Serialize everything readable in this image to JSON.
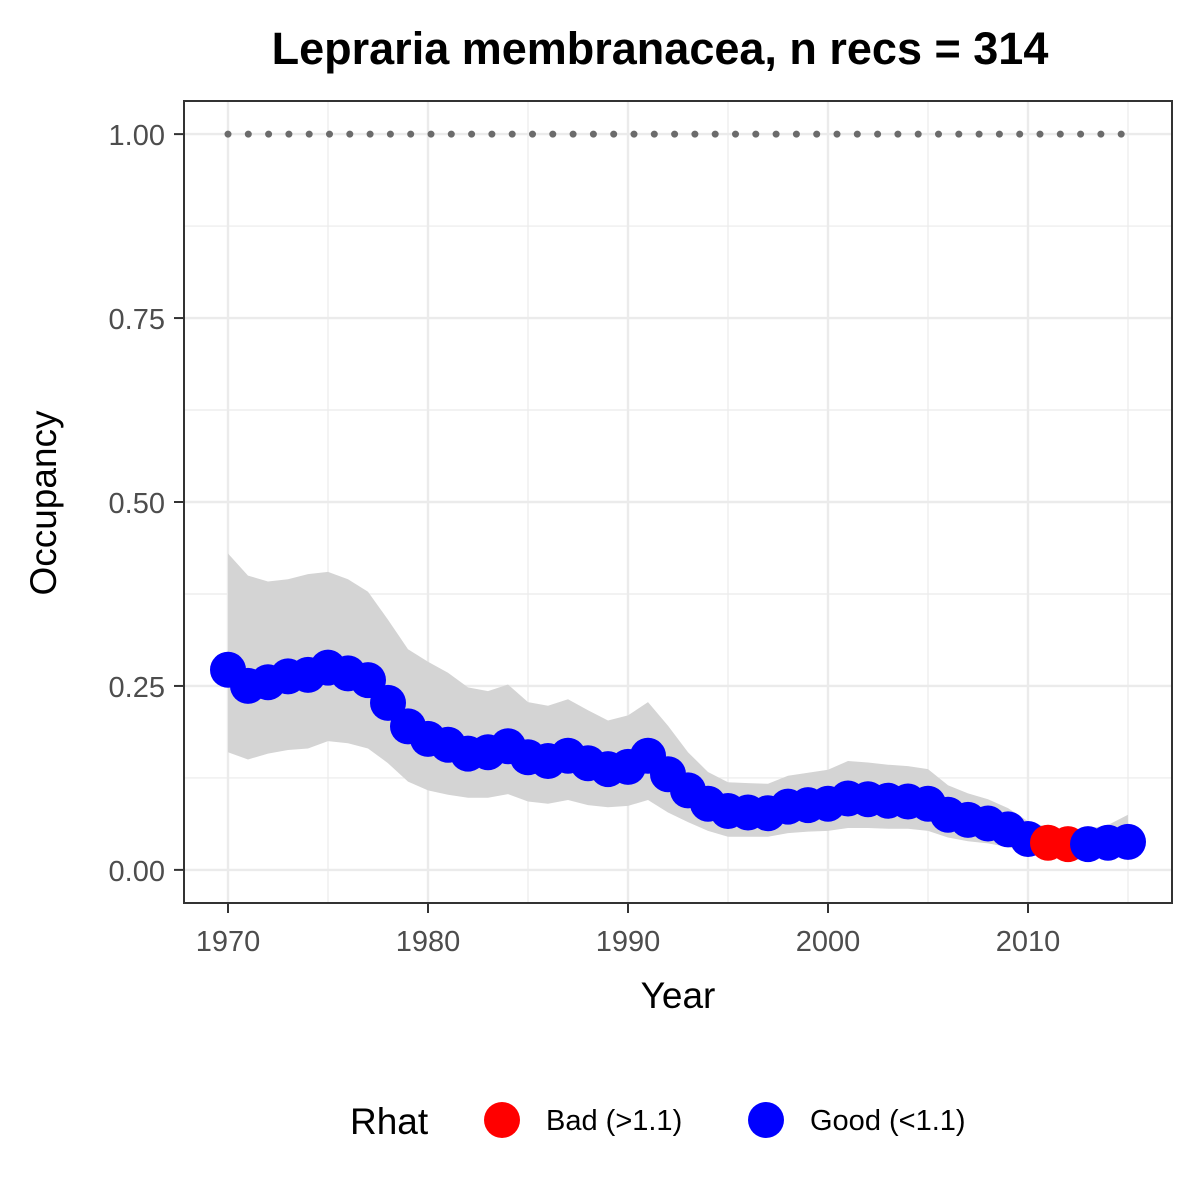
{
  "chart_data": {
    "type": "line",
    "title": "Lepraria membranacea, n recs = 314",
    "xlabel": "Year",
    "ylabel": "Occupancy",
    "xlim": [
      1967.8,
      2017.2
    ],
    "ylim": [
      -0.045,
      1.045
    ],
    "x_ticks": [
      1970,
      1980,
      1990,
      2000,
      2010
    ],
    "y_ticks": [
      0.0,
      0.25,
      0.5,
      0.75,
      1.0
    ],
    "y_tick_labels": [
      "0.00",
      "0.25",
      "0.50",
      "0.75",
      "1.00"
    ],
    "grid": true,
    "legend": {
      "position": "bottom",
      "title": "Rhat",
      "entries": [
        {
          "label": "Bad (>1.1)",
          "color": "#ff0000"
        },
        {
          "label": "Good (<1.1)",
          "color": "#0000ff"
        }
      ]
    },
    "colors": {
      "bad": "#ff0000",
      "good": "#0000ff",
      "ribbon": "#d4d4d4",
      "reference": "#6b6b6b",
      "grid": "#ebebeb",
      "panel_border": "#333333"
    },
    "reference_line": {
      "y": 1.0,
      "style": "dotted"
    },
    "x": [
      1970,
      1971,
      1972,
      1973,
      1974,
      1975,
      1976,
      1977,
      1978,
      1979,
      1980,
      1981,
      1982,
      1983,
      1984,
      1985,
      1986,
      1987,
      1988,
      1989,
      1990,
      1991,
      1992,
      1993,
      1994,
      1995,
      1996,
      1997,
      1998,
      1999,
      2000,
      2001,
      2002,
      2003,
      2004,
      2005,
      2006,
      2007,
      2008,
      2009,
      2010,
      2011,
      2012,
      2013,
      2014,
      2015
    ],
    "y": [
      0.272,
      0.25,
      0.255,
      0.263,
      0.265,
      0.275,
      0.267,
      0.258,
      0.227,
      0.195,
      0.178,
      0.17,
      0.158,
      0.16,
      0.168,
      0.153,
      0.148,
      0.155,
      0.145,
      0.137,
      0.14,
      0.155,
      0.13,
      0.108,
      0.09,
      0.08,
      0.078,
      0.077,
      0.086,
      0.088,
      0.09,
      0.097,
      0.096,
      0.094,
      0.093,
      0.09,
      0.075,
      0.068,
      0.063,
      0.055,
      0.042,
      0.037,
      0.035,
      0.035,
      0.037,
      0.038
    ],
    "lower": [
      0.16,
      0.15,
      0.158,
      0.163,
      0.165,
      0.175,
      0.172,
      0.165,
      0.145,
      0.12,
      0.108,
      0.102,
      0.098,
      0.098,
      0.103,
      0.093,
      0.09,
      0.095,
      0.088,
      0.085,
      0.087,
      0.095,
      0.078,
      0.065,
      0.053,
      0.045,
      0.045,
      0.045,
      0.05,
      0.052,
      0.053,
      0.057,
      0.057,
      0.056,
      0.056,
      0.053,
      0.044,
      0.039,
      0.036,
      0.031,
      0.024,
      0.021,
      0.02,
      0.02,
      0.021,
      0.022
    ],
    "upper": [
      0.43,
      0.4,
      0.392,
      0.395,
      0.402,
      0.405,
      0.395,
      0.378,
      0.34,
      0.3,
      0.283,
      0.268,
      0.248,
      0.243,
      0.252,
      0.228,
      0.223,
      0.232,
      0.217,
      0.203,
      0.21,
      0.228,
      0.196,
      0.16,
      0.133,
      0.119,
      0.118,
      0.117,
      0.128,
      0.132,
      0.136,
      0.148,
      0.146,
      0.143,
      0.141,
      0.137,
      0.115,
      0.104,
      0.096,
      0.084,
      0.066,
      0.058,
      0.055,
      0.056,
      0.061,
      0.075
    ],
    "rhat": [
      "Good",
      "Good",
      "Good",
      "Good",
      "Good",
      "Good",
      "Good",
      "Good",
      "Good",
      "Good",
      "Good",
      "Good",
      "Good",
      "Good",
      "Good",
      "Good",
      "Good",
      "Good",
      "Good",
      "Good",
      "Good",
      "Good",
      "Good",
      "Good",
      "Good",
      "Good",
      "Good",
      "Good",
      "Good",
      "Good",
      "Good",
      "Good",
      "Good",
      "Good",
      "Good",
      "Good",
      "Good",
      "Good",
      "Good",
      "Good",
      "Good",
      "Bad",
      "Bad",
      "Good",
      "Good",
      "Good"
    ]
  }
}
